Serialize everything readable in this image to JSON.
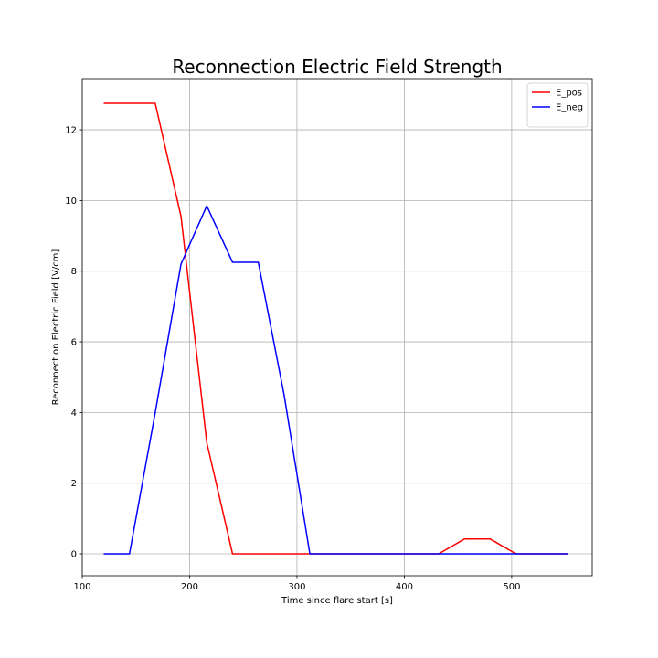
{
  "chart_data": {
    "type": "line",
    "title": "Reconnection Electric Field Strength",
    "xlabel": "Time since flare start [s]",
    "ylabel": "Reconnection Electric Field [V/cm]",
    "xlim": [
      100,
      575
    ],
    "ylim": [
      -0.62,
      13.45
    ],
    "xticks": [
      100,
      200,
      300,
      400,
      500
    ],
    "yticks": [
      0,
      2,
      4,
      6,
      8,
      10,
      12
    ],
    "grid": true,
    "legend_position": "top-right",
    "series": [
      {
        "name": "E_pos",
        "color": "#ff0000",
        "x": [
          120,
          144,
          168,
          192,
          216,
          240,
          264,
          288,
          312,
          336,
          360,
          384,
          408,
          432,
          456,
          480,
          504,
          528,
          552
        ],
        "y": [
          12.75,
          12.75,
          12.75,
          9.55,
          3.15,
          0,
          0,
          0,
          0,
          0,
          0,
          0,
          0,
          0,
          0.42,
          0.42,
          0,
          0,
          0
        ]
      },
      {
        "name": "E_neg",
        "color": "#0000ff",
        "x": [
          120,
          144,
          168,
          192,
          216,
          240,
          264,
          288,
          312,
          336,
          360,
          384,
          408,
          432,
          456,
          480,
          504,
          528,
          552
        ],
        "y": [
          0,
          0,
          4.0,
          8.2,
          9.85,
          8.25,
          8.25,
          4.5,
          0,
          0,
          0,
          0,
          0,
          0,
          0,
          0,
          0,
          0,
          0
        ]
      }
    ]
  }
}
